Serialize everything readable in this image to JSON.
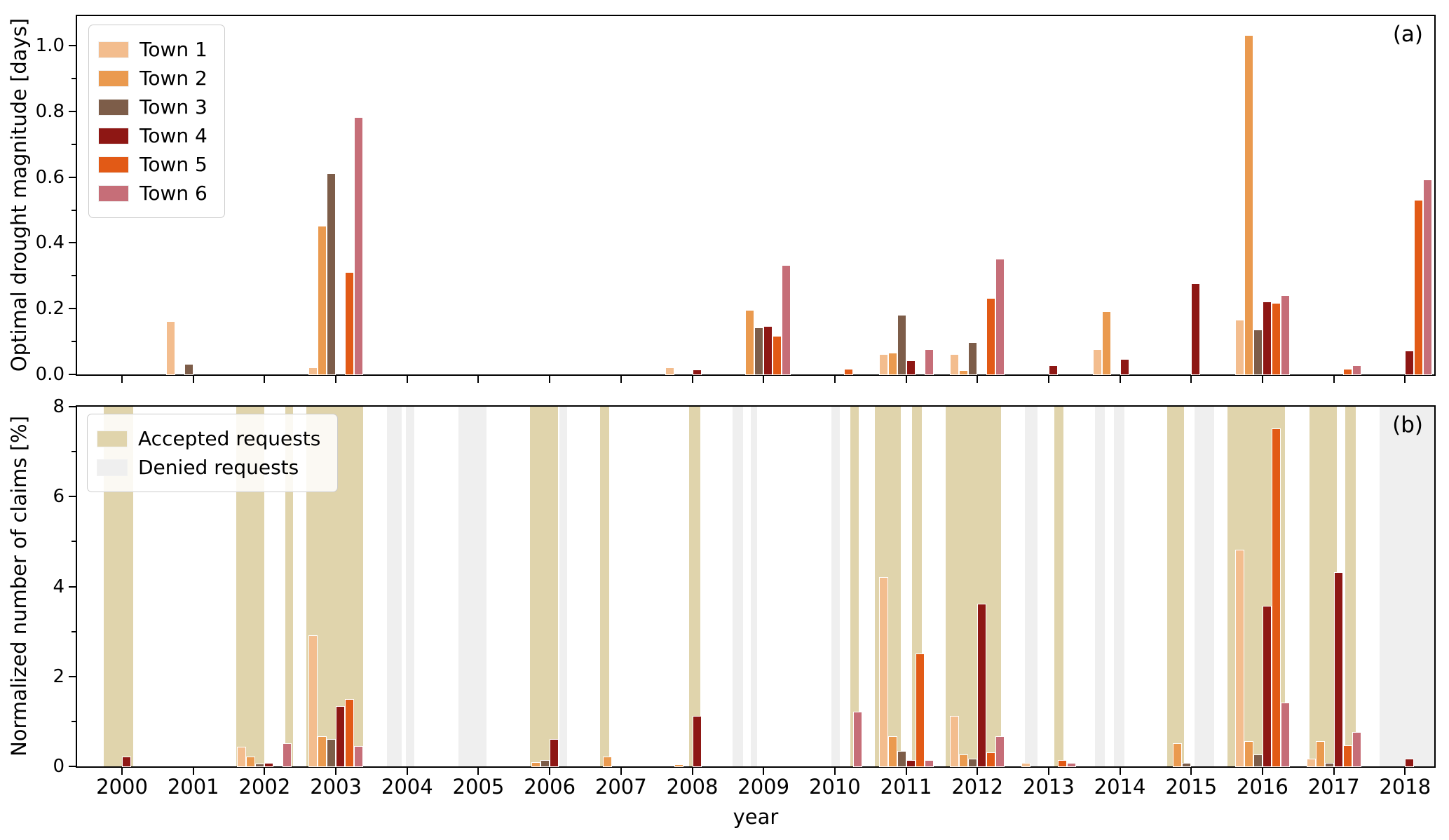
{
  "figure": {
    "panel_a": {
      "tag": "(a)",
      "ylabel": "Optimal drought magnitude [days]",
      "ytick_labels": [
        "0.0",
        "0.2",
        "0.4",
        "0.6",
        "0.8",
        "1.0"
      ],
      "ytick_values": [
        0,
        0.2,
        0.4,
        0.6,
        0.8,
        1.0
      ],
      "yminor_values": [
        0.1,
        0.3,
        0.5,
        0.7,
        0.9
      ]
    },
    "panel_b": {
      "tag": "(b)",
      "ylabel": "Normalized number of claims [%]",
      "xlabel": "year",
      "ytick_labels": [
        "0",
        "2",
        "4",
        "6",
        "8"
      ],
      "ytick_values": [
        0,
        2,
        4,
        6,
        8
      ],
      "yminor_values": [
        1,
        3,
        5,
        7
      ],
      "legend": [
        {
          "label": "Accepted requests",
          "color": "#e0d4ac"
        },
        {
          "label": "Denied requests",
          "color": "#efefef"
        }
      ]
    }
  },
  "chart_data": [
    {
      "type": "bar",
      "panel": "a",
      "ylabel": "Optimal drought magnitude [days]",
      "xlabel": "",
      "ylim": [
        0,
        1.09
      ],
      "xlim": [
        1999.37,
        2018.41
      ],
      "grid": false,
      "legend_position": "upper left",
      "categories": [
        2000,
        2001,
        2002,
        2003,
        2004,
        2005,
        2006,
        2007,
        2008,
        2009,
        2010,
        2011,
        2012,
        2013,
        2014,
        2015,
        2016,
        2017,
        2018
      ],
      "series": [
        {
          "name": "Town 1",
          "color": "#f3bd8e",
          "values": [
            0,
            0.16,
            0,
            0.02,
            0,
            0,
            0,
            0,
            0.02,
            0,
            0,
            0.06,
            0.06,
            0,
            0.075,
            0,
            0.165,
            0,
            0
          ]
        },
        {
          "name": "Town 2",
          "color": "#ea9a4f",
          "values": [
            0,
            0,
            0,
            0.45,
            0,
            0,
            0,
            0,
            0,
            0.195,
            0,
            0.065,
            0.01,
            0,
            0.19,
            0,
            1.03,
            0,
            0
          ]
        },
        {
          "name": "Town 3",
          "color": "#7d5d49",
          "values": [
            0,
            0.03,
            0,
            0.61,
            0,
            0,
            0,
            0,
            0,
            0.14,
            0,
            0.18,
            0.095,
            0,
            0,
            0,
            0.135,
            0,
            0
          ]
        },
        {
          "name": "Town 4",
          "color": "#8e1714",
          "values": [
            0,
            0,
            0,
            0,
            0,
            0,
            0,
            0,
            0.012,
            0.145,
            0,
            0.04,
            0,
            0.025,
            0.045,
            0.275,
            0.22,
            0,
            0.07
          ]
        },
        {
          "name": "Town 5",
          "color": "#e25a16",
          "values": [
            0,
            0,
            0,
            0.31,
            0,
            0,
            0,
            0,
            0,
            0.115,
            0.015,
            0,
            0.23,
            0,
            0,
            0,
            0.215,
            0.015,
            0.53
          ]
        },
        {
          "name": "Town 6",
          "color": "#c66e78",
          "values": [
            0,
            0,
            0,
            0.78,
            0,
            0,
            0,
            0,
            0,
            0.33,
            0,
            0.075,
            0.35,
            0,
            0,
            0,
            0.24,
            0.025,
            0.59
          ]
        }
      ]
    },
    {
      "type": "bar",
      "panel": "b",
      "ylabel": "Normalized number of claims [%]",
      "xlabel": "year",
      "ylim": [
        0,
        8
      ],
      "xlim": [
        1999.37,
        2018.41
      ],
      "grid": false,
      "legend_position": "upper left",
      "categories": [
        2000,
        2001,
        2002,
        2003,
        2004,
        2005,
        2006,
        2007,
        2008,
        2009,
        2010,
        2011,
        2012,
        2013,
        2014,
        2015,
        2016,
        2017,
        2018
      ],
      "series": [
        {
          "name": "Town 1",
          "color": "#f3bd8e",
          "values": [
            0,
            0,
            0.42,
            2.9,
            0,
            0,
            0,
            0,
            0,
            0,
            0,
            4.2,
            1.1,
            0.06,
            0,
            0,
            4.8,
            0.15,
            0
          ]
        },
        {
          "name": "Town 2",
          "color": "#ea9a4f",
          "values": [
            0,
            0,
            0.2,
            0.65,
            0,
            0,
            0.08,
            0.2,
            0.03,
            0,
            0,
            0.65,
            0.25,
            0,
            0,
            0.5,
            0.55,
            0.55,
            0
          ]
        },
        {
          "name": "Town 3",
          "color": "#7d5d49",
          "values": [
            0,
            0,
            0.05,
            0.6,
            0,
            0,
            0.12,
            0,
            0,
            0,
            0,
            0.33,
            0.15,
            0,
            0,
            0.06,
            0.25,
            0.07,
            0
          ]
        },
        {
          "name": "Town 4",
          "color": "#8e1714",
          "values": [
            0.2,
            0,
            0.07,
            1.32,
            0,
            0,
            0.6,
            0,
            1.1,
            0,
            0,
            0.13,
            3.6,
            0,
            0,
            0,
            3.55,
            4.3,
            0.15
          ]
        },
        {
          "name": "Town 5",
          "color": "#e25a16",
          "values": [
            0,
            0,
            0,
            1.48,
            0,
            0,
            0,
            0,
            0,
            0,
            0,
            2.5,
            0.3,
            0.13,
            0,
            0,
            7.5,
            0.45,
            0
          ]
        },
        {
          "name": "Town 6",
          "color": "#c66e78",
          "values": [
            0,
            0,
            0.5,
            0.44,
            0,
            0,
            0,
            0,
            0,
            0,
            1.2,
            0.13,
            0.65,
            0.07,
            0,
            0,
            1.4,
            0.75,
            0
          ]
        }
      ],
      "bands": {
        "accepted_color": "#e0d4ac",
        "denied_color": "#efefef",
        "accepted": [
          [
            1999.74,
            2000.16
          ],
          [
            2001.6,
            2002.0
          ],
          [
            2002.29,
            2002.4
          ],
          [
            2002.59,
            2003.38
          ],
          [
            2005.72,
            2006.12
          ],
          [
            2006.71,
            2006.83
          ],
          [
            2007.96,
            2008.11
          ],
          [
            2010.22,
            2010.34
          ],
          [
            2010.56,
            2010.93
          ],
          [
            2011.08,
            2011.22
          ],
          [
            2011.56,
            2012.33
          ],
          [
            2013.08,
            2013.21
          ],
          [
            2014.66,
            2014.9
          ],
          [
            2015.51,
            2016.32
          ],
          [
            2016.66,
            2017.04
          ],
          [
            2017.16,
            2017.31
          ]
        ],
        "denied": [
          [
            2003.72,
            2003.92
          ],
          [
            2003.98,
            2004.1
          ],
          [
            2004.72,
            2005.11
          ],
          [
            2006.14,
            2006.24
          ],
          [
            2008.57,
            2008.71
          ],
          [
            2008.82,
            2008.91
          ],
          [
            2009.95,
            2010.07
          ],
          [
            2012.67,
            2012.84
          ],
          [
            2013.65,
            2013.79
          ],
          [
            2013.92,
            2014.06
          ],
          [
            2015.05,
            2015.32
          ],
          [
            2017.64,
            2018.41
          ]
        ]
      }
    }
  ]
}
